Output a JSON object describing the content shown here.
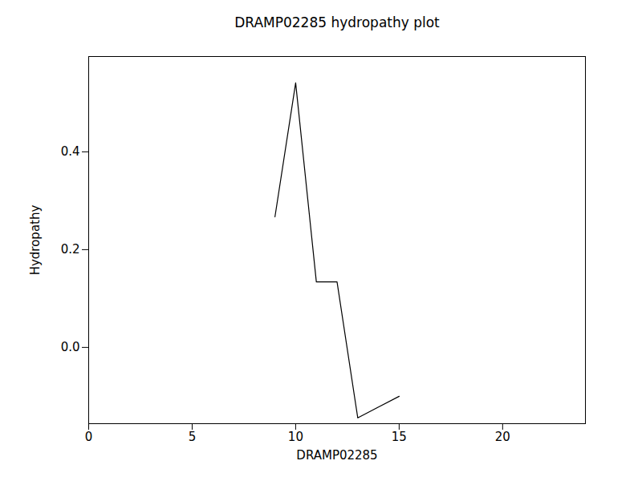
{
  "chart_data": {
    "type": "line",
    "title": "DRAMP02285 hydropathy plot",
    "x_label": "DRAMP02285",
    "y_label": "Hydropathy",
    "x": [
      9,
      10,
      11,
      12,
      13,
      14,
      15
    ],
    "values": [
      0.267,
      0.541,
      0.134,
      0.134,
      -0.144,
      -0.122,
      -0.1
    ],
    "color": "#000000",
    "xlim": [
      0,
      24
    ],
    "xticks": [
      0,
      5,
      10,
      15,
      20
    ],
    "ylim": [
      -0.156,
      0.595
    ],
    "yticks": [
      {
        "value": 0,
        "label": "0.0"
      },
      0.2,
      0.4
    ],
    "grid": false
  }
}
